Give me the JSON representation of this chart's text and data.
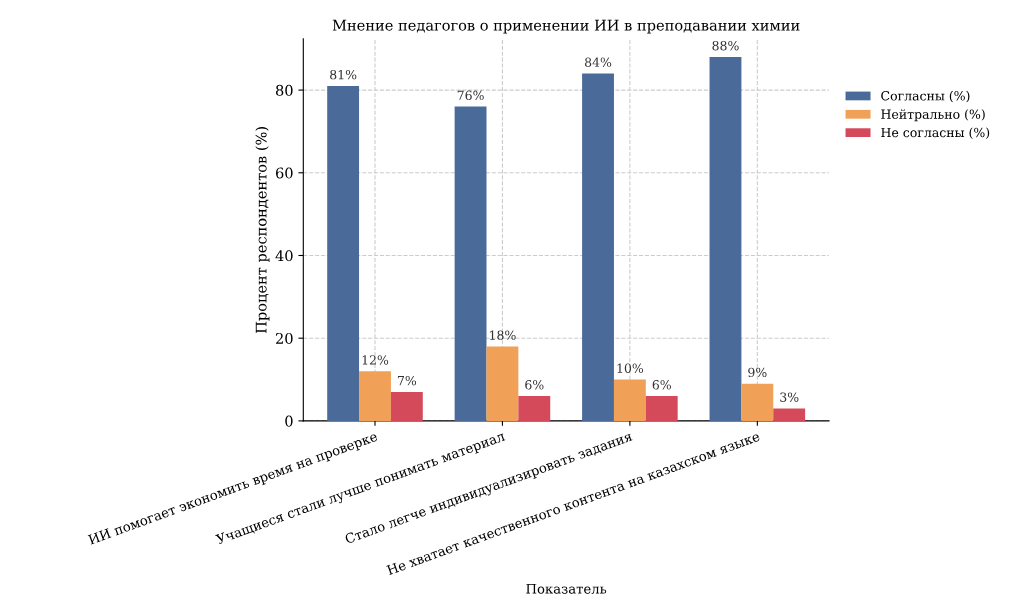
{
  "chart_data": {
    "type": "bar",
    "title": "Мнение педагогов о применении ИИ в преподавании химии",
    "xlabel": "Показатель",
    "ylabel": "Процент респондентов (%)",
    "categories": [
      "ИИ помогает экономить время на проверке",
      "Учащиеся стали лучше понимать материал",
      "Стало легче индивидуализировать задания",
      "Не хватает качественного контента на казахском языке"
    ],
    "series": [
      {
        "name": "Согласны (%)",
        "color": "#4a6a9a",
        "values": [
          81,
          76,
          84,
          88
        ],
        "value_labels": [
          "81%",
          "76%",
          "84%",
          "88%"
        ]
      },
      {
        "name": "Нейтрально (%)",
        "color": "#f0a057",
        "values": [
          12,
          18,
          10,
          9
        ],
        "value_labels": [
          "12%",
          "18%",
          "10%",
          "9%"
        ]
      },
      {
        "name": "Не согласны (%)",
        "color": "#d44a5a",
        "values": [
          7,
          6,
          6,
          3
        ],
        "value_labels": [
          "7%",
          "6%",
          "6%",
          "3%"
        ]
      }
    ],
    "ylim": [
      0,
      92.4
    ],
    "yticks": [
      0,
      20,
      40,
      60,
      80
    ],
    "grid": true,
    "legend": "right"
  }
}
